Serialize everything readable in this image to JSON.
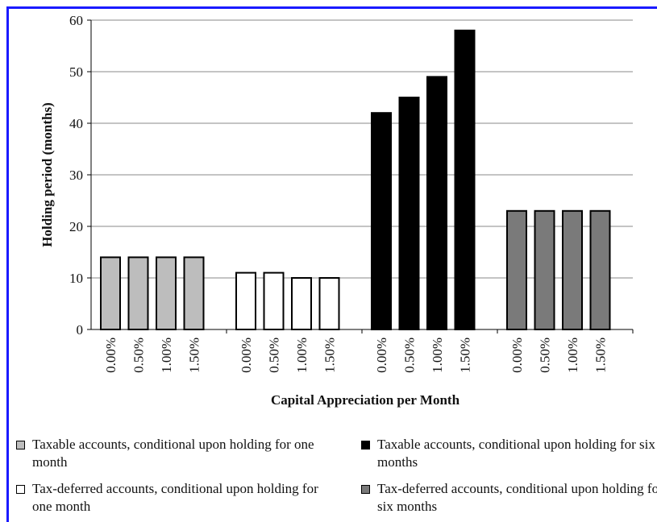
{
  "chart_data": {
    "type": "bar",
    "x_label": "Capital Appreciation per Month",
    "y_label": "Holding period (months)",
    "categories": [
      "0.00%",
      "0.50%",
      "1.00%",
      "1.50%"
    ],
    "series": [
      {
        "name": "Taxable accounts, conditional upon holding for one month",
        "color": "#bdbdbd",
        "values": [
          14,
          14,
          14,
          14
        ]
      },
      {
        "name": "Tax-deferred accounts, conditional upon holding for one month",
        "color": "#ffffff",
        "values": [
          11,
          11,
          10,
          10
        ]
      },
      {
        "name": "Taxable accounts, conditional upon holding for six months",
        "color": "#000000",
        "values": [
          42,
          45,
          49,
          58
        ]
      },
      {
        "name": "Tax-deferred accounts, conditional upon holding for six months",
        "color": "#7a7a7a",
        "values": [
          23,
          23,
          23,
          23
        ]
      }
    ],
    "ylim": [
      0,
      60
    ],
    "yticks": [
      0,
      10,
      20,
      30,
      40,
      50,
      60
    ],
    "grid": true
  }
}
